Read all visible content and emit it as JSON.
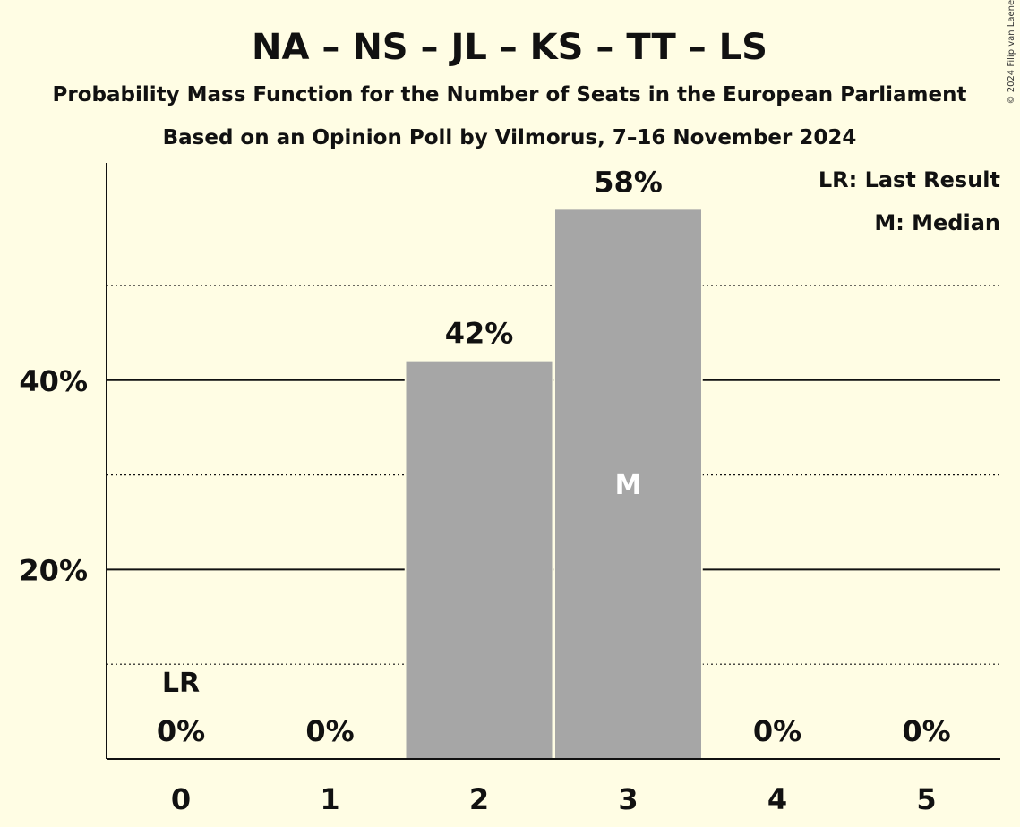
{
  "title": "NA – NS – JL – KS – TT – LS",
  "subtitle": "Probability Mass Function for the Number of Seats in the European Parliament",
  "subtitle2": "Based on an Opinion Poll by Vilmorus, 7–16 November 2024",
  "copyright": "© 2024 Filip van Laenen",
  "legend": {
    "last_result": "LR: Last Result",
    "median": "M: Median"
  },
  "colors": {
    "background": "#fffde4",
    "bar": "#a6a6a6"
  },
  "chart_data": {
    "type": "bar",
    "categories": [
      "0",
      "1",
      "2",
      "3",
      "4",
      "5"
    ],
    "values": [
      0,
      0,
      42,
      58,
      0,
      0
    ],
    "value_labels": [
      "0%",
      "0%",
      "42%",
      "58%",
      "0%",
      "0%"
    ],
    "ylim": [
      0,
      63
    ],
    "yticks": [
      20,
      40
    ],
    "ytick_labels": [
      "20%",
      "40%"
    ],
    "minor_gridlines": [
      10,
      30,
      50
    ],
    "last_result_index": 0,
    "last_result_label": "LR",
    "median_index": 3,
    "median_label": "M"
  }
}
